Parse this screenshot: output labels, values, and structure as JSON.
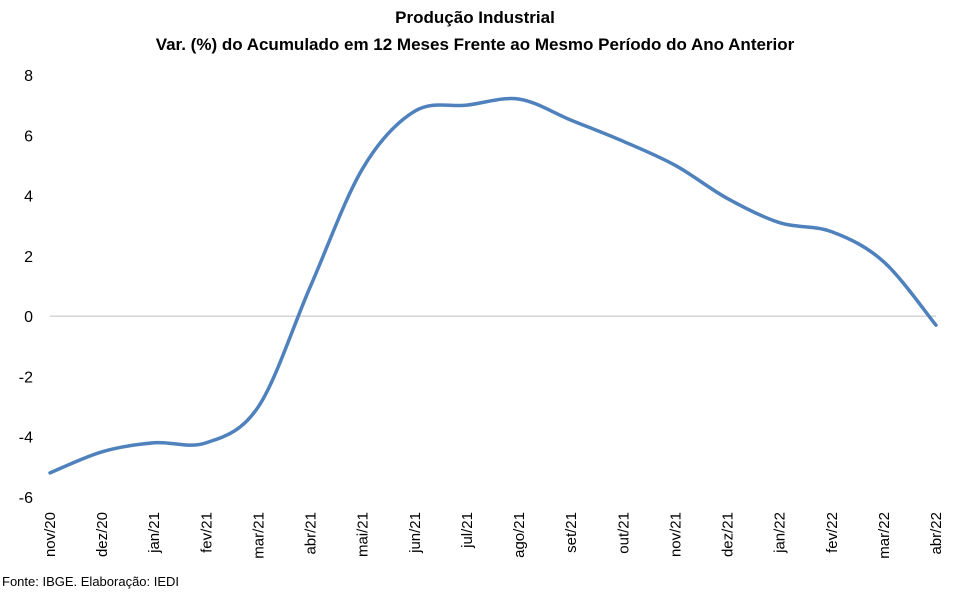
{
  "chart_data": {
    "type": "line",
    "title": "Produção  Industrial",
    "subtitle": "Var. (%) do Acumulado em 12 Meses Frente ao Mesmo Período do Ano Anterior",
    "xlabel": "",
    "ylabel": "",
    "ylim": [
      -6,
      8
    ],
    "yticks": [
      "-6",
      "-4",
      "-2",
      "0",
      "2",
      "4",
      "6",
      "8"
    ],
    "grid": false,
    "legend": "none",
    "categories": [
      "nov/20",
      "dez/20",
      "jan/21",
      "fev/21",
      "mar/21",
      "abr/21",
      "mai/21",
      "jun/21",
      "jul/21",
      "ago/21",
      "set/21",
      "out/21",
      "nov/21",
      "dez/21",
      "jan/22",
      "fev/22",
      "mar/22",
      "abr/22"
    ],
    "series": [
      {
        "color": "#4f81bd",
        "values": [
          -5.2,
          -4.5,
          -4.2,
          -4.2,
          -3.0,
          1.0,
          4.9,
          6.8,
          7.0,
          7.2,
          6.5,
          5.8,
          5.0,
          3.9,
          3.1,
          2.8,
          1.8,
          -0.3
        ]
      }
    ],
    "zero_line_color": "#bfbfbf"
  },
  "footer": {
    "source": "Fonte: IBGE. Elaboração: IEDI"
  }
}
